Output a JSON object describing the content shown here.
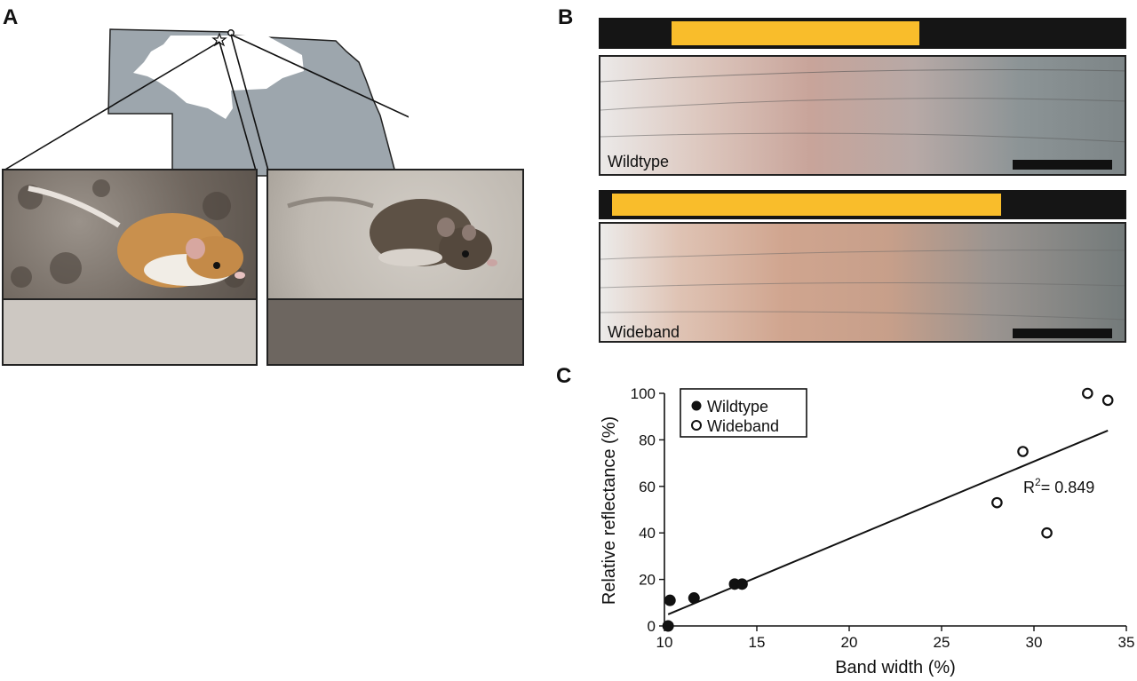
{
  "panels": {
    "a": "A",
    "b": "B",
    "c": "C"
  },
  "hair": {
    "wildtype": {
      "label": "Wildtype",
      "band_start": 0.138,
      "band_end": 0.607
    },
    "wideband": {
      "label": "Wideband",
      "band_start": 0.025,
      "band_end": 0.763
    }
  },
  "chart_data": {
    "type": "scatter",
    "xlabel": "Band width (%)",
    "ylabel": "Relative reflectance (%)",
    "xlim": [
      10,
      35
    ],
    "ylim": [
      0,
      100
    ],
    "xticks": [
      "10",
      "15",
      "20",
      "25",
      "30",
      "35"
    ],
    "yticks": [
      "0",
      "20",
      "40",
      "60",
      "80",
      "100"
    ],
    "legend_position": "top-left",
    "series": [
      {
        "name": "Wildtype",
        "marker": "filled-circle",
        "x": [
          10.2,
          10.3,
          11.6,
          13.8,
          14.2
        ],
        "y": [
          0,
          11,
          12,
          18,
          18
        ]
      },
      {
        "name": "Wideband",
        "marker": "open-circle",
        "x": [
          28.0,
          29.4,
          30.7,
          32.9,
          34.0
        ],
        "y": [
          53,
          75,
          40,
          100,
          97
        ]
      }
    ],
    "trendline": {
      "x": [
        10.2,
        34.0
      ],
      "y": [
        5,
        84
      ]
    },
    "annotation": {
      "label": "R",
      "superscript": "2",
      "value": "= 0.849"
    }
  }
}
